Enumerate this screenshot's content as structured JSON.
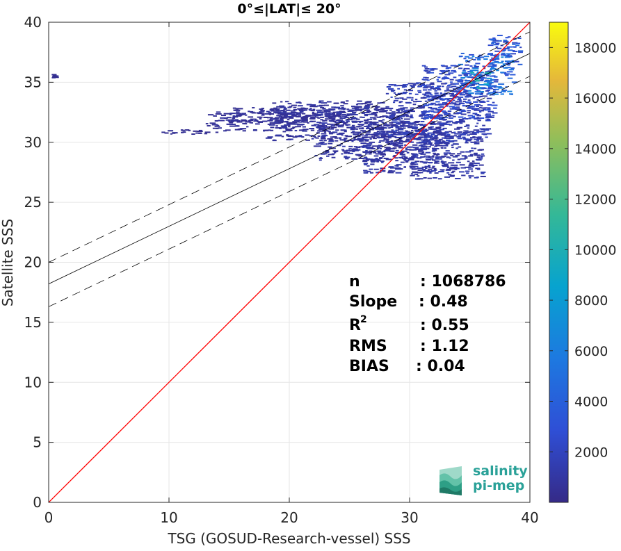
{
  "chart_data": {
    "type": "heatmap",
    "title": "0°≤|LAT|≤ 20°",
    "xlabel": "TSG (GOSUD-Research-vessel) SSS",
    "ylabel": "Satellite SSS",
    "xlim": [
      0,
      40
    ],
    "ylim": [
      0,
      40
    ],
    "xticks": [
      "0",
      "10",
      "20",
      "30",
      "40"
    ],
    "yticks": [
      "0",
      "5",
      "10",
      "15",
      "20",
      "25",
      "30",
      "35",
      "40"
    ],
    "grid": true,
    "colormap": "parula",
    "colorbar": {
      "range": [
        0,
        19000
      ],
      "ticks": [
        "2000",
        "4000",
        "6000",
        "8000",
        "10000",
        "12000",
        "14000",
        "16000",
        "18000"
      ]
    },
    "lines": [
      {
        "name": "identity",
        "slope": 1.0,
        "intercept": 0.0,
        "color": "#ff0000",
        "style": "solid"
      },
      {
        "name": "regression",
        "slope": 0.48,
        "intercept": 18.2,
        "color": "#000000",
        "style": "solid"
      },
      {
        "name": "regression-upper",
        "slope": 0.48,
        "intercept": 20.0,
        "color": "#000000",
        "style": "dashed"
      },
      {
        "name": "regression-lower",
        "slope": 0.48,
        "intercept": 16.3,
        "color": "#000000",
        "style": "dashed"
      }
    ],
    "density_regions": [
      {
        "x": [
          8.8,
          14
        ],
        "y": [
          30.7,
          31.1
        ],
        "level": 0.02
      },
      {
        "x": [
          13,
          22
        ],
        "y": [
          31.0,
          32.6
        ],
        "level": 0.03
      },
      {
        "x": [
          15,
          24
        ],
        "y": [
          31.8,
          33.0
        ],
        "level": 0.03
      },
      {
        "x": [
          18,
          28
        ],
        "y": [
          30.2,
          33.5
        ],
        "level": 0.04
      },
      {
        "x": [
          22,
          30
        ],
        "y": [
          28.5,
          33.0
        ],
        "level": 0.05
      },
      {
        "x": [
          26,
          33
        ],
        "y": [
          27.5,
          32.0
        ],
        "level": 0.05
      },
      {
        "x": [
          30,
          36
        ],
        "y": [
          27.0,
          31.0
        ],
        "level": 0.06
      },
      {
        "x": [
          28,
          36.5
        ],
        "y": [
          30.0,
          35.0
        ],
        "level": 0.08
      },
      {
        "x": [
          31,
          37
        ],
        "y": [
          32.0,
          36.5
        ],
        "level": 0.12
      },
      {
        "x": [
          34,
          38.5
        ],
        "y": [
          34.0,
          37.5
        ],
        "level": 0.25
      },
      {
        "x": [
          35,
          36.5
        ],
        "y": [
          34.5,
          36.0
        ],
        "level": 0.4
      },
      {
        "x": [
          36.5,
          39.2
        ],
        "y": [
          36.5,
          39.0
        ],
        "level": 0.18
      },
      {
        "x": [
          0.2,
          0.4
        ],
        "y": [
          35.4,
          35.7
        ],
        "level": 0.02
      }
    ],
    "stats": [
      {
        "label": "n",
        "sup": "",
        "value": ": 1068786"
      },
      {
        "label": "Slope",
        "sup": "",
        "value": ": 0.48"
      },
      {
        "label": "R",
        "sup": "2",
        "value": ": 0.55"
      },
      {
        "label": "RMS",
        "sup": "",
        "value": ": 1.12"
      },
      {
        "label": "BIAS",
        "sup": "",
        "value": ": 0.04"
      }
    ]
  },
  "logo": {
    "line1": "salinity",
    "line2": "pi-mep",
    "color": "#2aa198"
  }
}
